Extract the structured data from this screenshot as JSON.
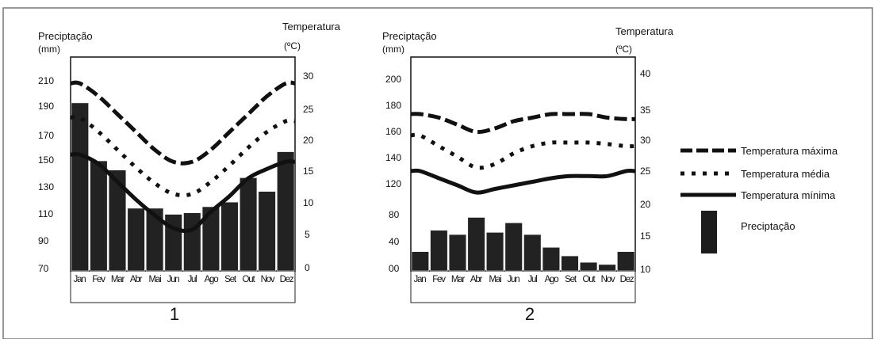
{
  "chart_data": [
    {
      "type": "bar",
      "panel_label": "1",
      "y_left_label_line1": "Preciptação",
      "y_left_label_line2": "(mm)",
      "y_right_label_line1": "Temperatura",
      "y_right_label_line2": "(ºC)",
      "categories": [
        "Jan",
        "Fev",
        "Mar",
        "Abr",
        "Mai",
        "Jun",
        "Jul",
        "Ago",
        "Set",
        "Out",
        "Nov",
        "Dez"
      ],
      "precip_ylim": [
        70,
        210
      ],
      "precip_ticks": [
        "210",
        "190",
        "170",
        "150",
        "130",
        "110",
        "90",
        "70"
      ],
      "temp_ylim": [
        0,
        30
      ],
      "temp_ticks": [
        "30",
        "25",
        "20",
        "15",
        "10",
        "5",
        "0"
      ],
      "series": [
        {
          "name": "Preciptação",
          "kind": "bar",
          "values": [
            180,
            142,
            136,
            111,
            111,
            107,
            108,
            112,
            115,
            131,
            122,
            148
          ]
        },
        {
          "name": "Temperatura máxima",
          "kind": "line",
          "style": "dashed",
          "values": [
            26.3,
            24.5,
            22.0,
            19.5,
            17.0,
            15.3,
            15.3,
            17.0,
            19.5,
            22.0,
            24.5,
            26.3
          ]
        },
        {
          "name": "Temperatura média",
          "kind": "line",
          "style": "dotted",
          "values": [
            21.5,
            19.5,
            17.0,
            14.5,
            12.3,
            10.8,
            10.8,
            12.5,
            14.8,
            17.3,
            19.5,
            21.0
          ]
        },
        {
          "name": "Temperatura mínima",
          "kind": "line",
          "style": "solid",
          "values": [
            16.3,
            15.0,
            12.5,
            10.0,
            7.8,
            6.0,
            5.8,
            8.3,
            10.5,
            13.0,
            14.3,
            15.3
          ]
        }
      ]
    },
    {
      "type": "bar",
      "panel_label": "2",
      "y_left_label_line1": "Preciptação",
      "y_left_label_line2": "(mm)",
      "y_right_label_line1": "Temperatura",
      "y_right_label_line2": "(ºC)",
      "categories": [
        "Jan",
        "Fev",
        "Mar",
        "Abr",
        "Mai",
        "Jun",
        "Jul",
        "Ago",
        "Set",
        "Out",
        "Nov",
        "Dez"
      ],
      "precip_ylim": [
        0,
        200
      ],
      "precip_ticks": [
        "200",
        "180",
        "160",
        "140",
        "120",
        "80",
        "40",
        "00"
      ],
      "temp_ylim": [
        10,
        40
      ],
      "temp_ticks": [
        "40",
        "35",
        "30",
        "25",
        "20",
        "15",
        "10"
      ],
      "series": [
        {
          "name": "Preciptação",
          "kind": "bar",
          "values": [
            18,
            38,
            34,
            50,
            36,
            45,
            34,
            22,
            14,
            8,
            6,
            18
          ]
        },
        {
          "name": "Temperatura máxima",
          "kind": "line",
          "style": "dashed",
          "values": [
            32.0,
            31.5,
            30.5,
            29.5,
            30.0,
            31.0,
            31.5,
            32.0,
            32.0,
            32.0,
            31.5,
            31.3
          ]
        },
        {
          "name": "Temperatura média",
          "kind": "line",
          "style": "dotted",
          "values": [
            29.0,
            27.5,
            26.0,
            24.5,
            25.0,
            26.5,
            27.5,
            28.0,
            28.0,
            28.0,
            27.8,
            27.5
          ]
        },
        {
          "name": "Temperatura mínima",
          "kind": "line",
          "style": "solid",
          "values": [
            24.0,
            23.0,
            22.0,
            21.0,
            21.5,
            22.0,
            22.5,
            23.0,
            23.3,
            23.3,
            23.3,
            24.0
          ]
        }
      ]
    }
  ],
  "legend": {
    "max_label": "Temperatura máxima",
    "mean_label": "Temperatura média",
    "min_label": "Temperatura mínima",
    "precip_label": "Preciptação"
  }
}
